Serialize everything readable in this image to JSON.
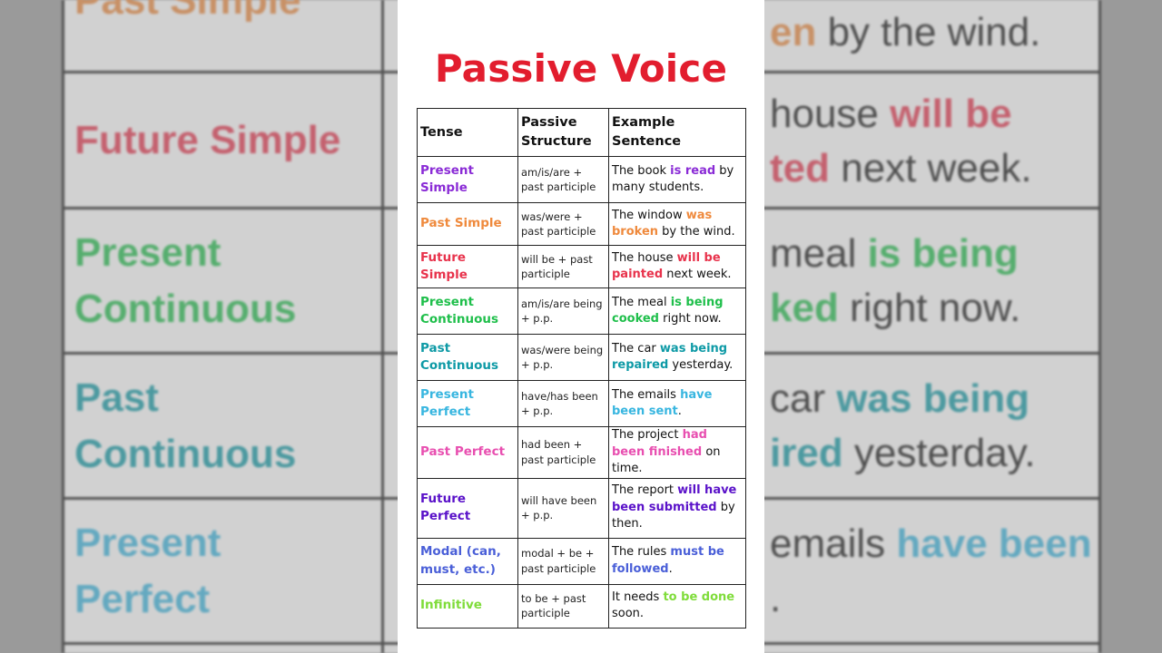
{
  "title": "Passive Voice",
  "table": {
    "headers": [
      "Tense",
      "Passive Structure",
      "Example Sentence"
    ],
    "rows": [
      {
        "tense": "Present Simple",
        "color": "#8a2bd6",
        "structure": "am/is/are + past participle",
        "before": "The book ",
        "highlight": "is read",
        "after": " by many students."
      },
      {
        "tense": "Past Simple",
        "color": "#ef8a3d",
        "structure": "was/were + past participle",
        "before": "The window ",
        "highlight": "was broken",
        "after": " by the wind."
      },
      {
        "tense": "Future Simple",
        "color": "#e8334c",
        "structure": "will be + past participle",
        "before": "The house ",
        "highlight": "will be painted",
        "after": " next week."
      },
      {
        "tense": "Present Continuous",
        "color": "#1fbf4b",
        "structure": "am/is/are being + p.p.",
        "before": "The meal ",
        "highlight": "is being cooked",
        "after": " right now."
      },
      {
        "tense": "Past Continuous",
        "color": "#0e9aa6",
        "structure": "was/were being + p.p.",
        "before": "The car ",
        "highlight": "was being repaired",
        "after": " yesterday."
      },
      {
        "tense": "Present Perfect",
        "color": "#38b6e0",
        "structure": "have/has been + p.p.",
        "before": "The emails ",
        "highlight": "have been sent",
        "after": "."
      },
      {
        "tense": "Past Perfect",
        "color": "#e84fb0",
        "structure": "had been + past participle",
        "before": "The project ",
        "highlight": "had been finished",
        "after": " on time."
      },
      {
        "tense": "Future Perfect",
        "color": "#5a12c9",
        "structure": "will have been + p.p.",
        "before": "The report ",
        "highlight": "will have been submitted",
        "after": " by then."
      },
      {
        "tense": "Modal (can, must, etc.)",
        "color": "#4a5fd8",
        "structure": "modal + be + past participle",
        "before": "The rules ",
        "highlight": "must be followed",
        "after": "."
      },
      {
        "tense": "Infinitive",
        "color": "#7fdc3a",
        "structure": "to be + past participle",
        "before": "It needs ",
        "highlight": "to be done",
        "after": " soon."
      }
    ]
  }
}
